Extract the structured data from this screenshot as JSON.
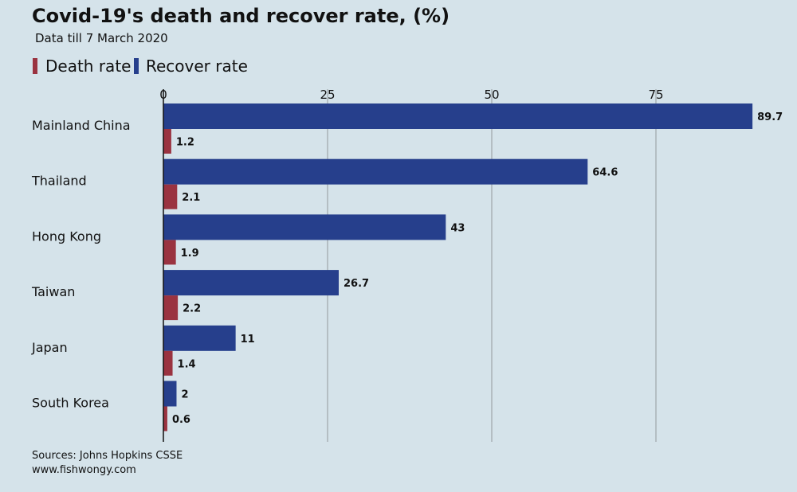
{
  "chart_data": {
    "type": "bar",
    "orientation": "horizontal",
    "title": "Covid-19's death and recover rate, (%)",
    "subtitle": "Data till 7 March 2020",
    "categories": [
      "Mainland China",
      "Thailand",
      "Hong Kong",
      "Taiwan",
      "Japan",
      "South Korea"
    ],
    "series": [
      {
        "name": "Recover rate",
        "color": "#263f8c",
        "values": [
          89.7,
          64.6,
          43,
          26.7,
          11,
          2
        ],
        "labels": [
          "89.7",
          "64.6",
          "43",
          "26.7",
          "11",
          "2"
        ]
      },
      {
        "name": "Death rate",
        "color": "#9a3340",
        "values": [
          1.2,
          2.1,
          1.9,
          2.2,
          1.4,
          0.6
        ],
        "labels": [
          "1.2",
          "2.1",
          "1.9",
          "2.2",
          "1.4",
          "0.6"
        ]
      }
    ],
    "xlim": [
      0,
      90
    ],
    "xticks": [
      0,
      25,
      50,
      75
    ],
    "xtick_labels": [
      "0",
      "25",
      "50",
      "75"
    ],
    "grid": true,
    "legend_position": "top-left",
    "legend": [
      "Death rate",
      "Recover rate"
    ],
    "sources": [
      "Sources: Johns Hopkins CSSE",
      "www.fishwongy.com"
    ]
  }
}
